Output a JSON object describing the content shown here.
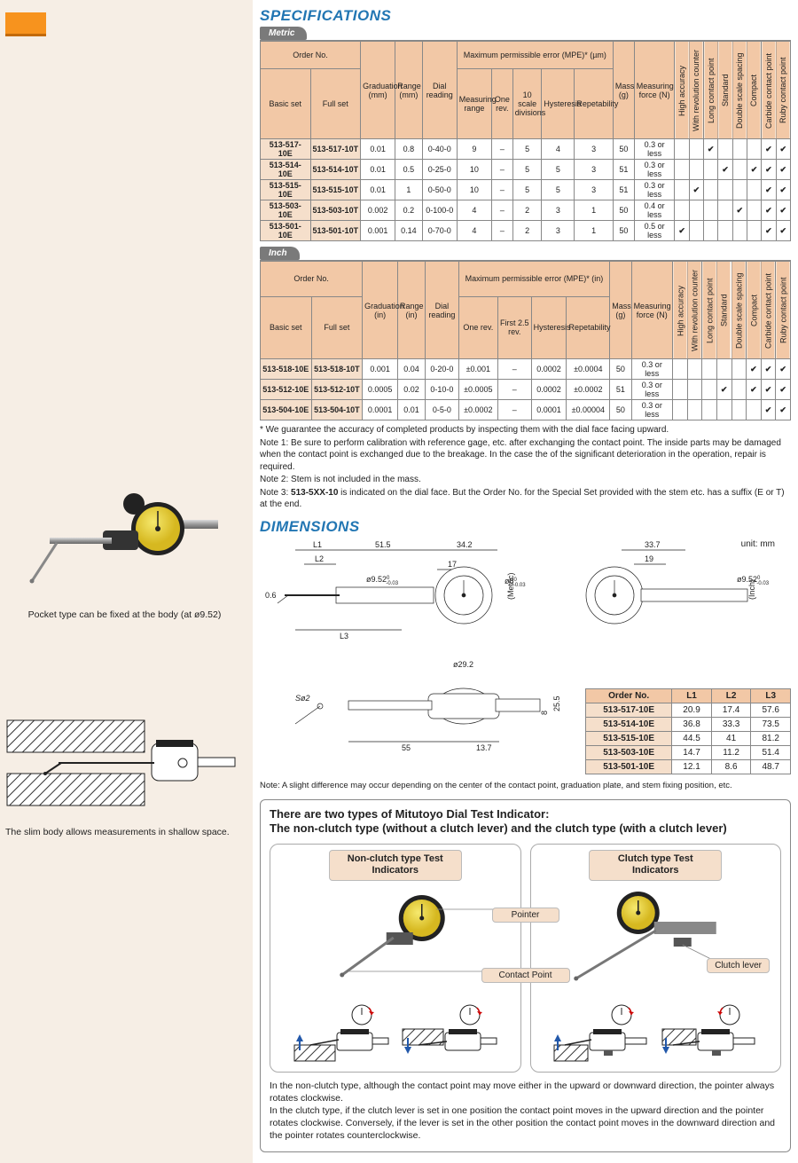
{
  "sidebar": {
    "caption1": "Pocket type can be fixed at the body (at ø9.52)",
    "caption2": "The slim body allows measurements in shallow space."
  },
  "headings": {
    "specs": "SPECIFICATIONS",
    "dimensions": "DIMENSIONS",
    "metric_tab": "Metric",
    "inch_tab": "Inch"
  },
  "metric_table": {
    "header_order": "Order No.",
    "header_basic": "Basic set",
    "header_full": "Full set",
    "header_grad": "Graduation (mm)",
    "header_range": "Range (mm)",
    "header_dial": "Dial reading",
    "header_mpe": "Maximum permissible error (MPE)* (µm)",
    "header_mrange": "Measuring range",
    "header_onerev": "One rev.",
    "header_10scale": "10 scale divisions",
    "header_hyst": "Hysteresis",
    "header_repeat": "Repetability",
    "header_mass": "Mass (g)",
    "header_force": "Measuring force (N)",
    "header_ha": "High accuracy",
    "header_rc": "With revolution counter",
    "header_lcp": "Long contact point",
    "header_std": "Standard",
    "header_dss": "Double scale spacing",
    "header_cmp": "Compact",
    "header_ccp": "Carbide contact point",
    "header_rcp": "Ruby contact point",
    "rows": [
      {
        "basic": "513-517-10E",
        "full": "513-517-10T",
        "grad": "0.01",
        "range": "0.8",
        "dial": "0-40-0",
        "mr": "9",
        "or": "–",
        "sd": "5",
        "hy": "4",
        "rp": "3",
        "mass": "50",
        "force": "0.3 or less",
        "cols": [
          "",
          "",
          "✔",
          "",
          "",
          "",
          "✔",
          "✔"
        ]
      },
      {
        "basic": "513-514-10E",
        "full": "513-514-10T",
        "grad": "0.01",
        "range": "0.5",
        "dial": "0-25-0",
        "mr": "10",
        "or": "–",
        "sd": "5",
        "hy": "5",
        "rp": "3",
        "mass": "51",
        "force": "0.3 or less",
        "cols": [
          "",
          "",
          "",
          "✔",
          "",
          "✔",
          "✔",
          "✔"
        ]
      },
      {
        "basic": "513-515-10E",
        "full": "513-515-10T",
        "grad": "0.01",
        "range": "1",
        "dial": "0-50-0",
        "mr": "10",
        "or": "–",
        "sd": "5",
        "hy": "5",
        "rp": "3",
        "mass": "51",
        "force": "0.3 or less",
        "cols": [
          "",
          "✔",
          "",
          "",
          "",
          "",
          "✔",
          "✔"
        ]
      },
      {
        "basic": "513-503-10E",
        "full": "513-503-10T",
        "grad": "0.002",
        "range": "0.2",
        "dial": "0-100-0",
        "mr": "4",
        "or": "–",
        "sd": "2",
        "hy": "3",
        "rp": "1",
        "mass": "50",
        "force": "0.4 or less",
        "cols": [
          "",
          "",
          "",
          "",
          "✔",
          "",
          "✔",
          "✔"
        ]
      },
      {
        "basic": "513-501-10E",
        "full": "513-501-10T",
        "grad": "0.001",
        "range": "0.14",
        "dial": "0-70-0",
        "mr": "4",
        "or": "–",
        "sd": "2",
        "hy": "3",
        "rp": "1",
        "mass": "50",
        "force": "0.5 or less",
        "cols": [
          "✔",
          "",
          "",
          "",
          "",
          "",
          "✔",
          "✔"
        ]
      }
    ]
  },
  "inch_table": {
    "header_mpe": "Maximum permissible error (MPE)* (in)",
    "header_grad": "Graduation (in)",
    "header_range": "Range (in)",
    "header_onerev": "One rev.",
    "header_first25": "First 2.5 rev.",
    "rows": [
      {
        "basic": "513-518-10E",
        "full": "513-518-10T",
        "grad": "0.001",
        "range": "0.04",
        "dial": "0-20-0",
        "or": "±0.001",
        "f25": "–",
        "hy": "0.0002",
        "rp": "±0.0004",
        "mass": "50",
        "force": "0.3 or less",
        "cols": [
          "",
          "",
          "",
          "",
          "",
          "✔",
          "✔",
          "✔"
        ]
      },
      {
        "basic": "513-512-10E",
        "full": "513-512-10T",
        "grad": "0.0005",
        "range": "0.02",
        "dial": "0-10-0",
        "or": "±0.0005",
        "f25": "–",
        "hy": "0.0002",
        "rp": "±0.0002",
        "mass": "51",
        "force": "0.3 or less",
        "cols": [
          "",
          "",
          "",
          "✔",
          "",
          "✔",
          "✔",
          "✔"
        ]
      },
      {
        "basic": "513-504-10E",
        "full": "513-504-10T",
        "grad": "0.0001",
        "range": "0.01",
        "dial": "0-5-0",
        "or": "±0.0002",
        "f25": "–",
        "hy": "0.0001",
        "rp": "±0.00004",
        "mass": "50",
        "force": "0.3 or less",
        "cols": [
          "",
          "",
          "",
          "",
          "",
          "",
          "✔",
          "✔"
        ]
      }
    ]
  },
  "notes": {
    "star": "* We guarantee the accuracy of completed products by inspecting them with the dial face facing upward.",
    "n1": "Note 1: Be sure to perform calibration with reference gage, etc. after exchanging the contact point. The inside parts may be damaged when the contact point is exchanged due to the breakage. In the case the of the significant deterioration in the operation, repair is required.",
    "n2": "Note 2: Stem is not included in the mass.",
    "n3a": "Note 3: ",
    "n3b": "513-5XX-10",
    "n3c": " is indicated on the dial face. But the Order No. for the Special Set provided with the stem etc. has a suffix (E or T) at the end."
  },
  "dim": {
    "unit": "unit: mm",
    "drawing_labels": {
      "L1": "L1",
      "L2": "L2",
      "L3": "L3",
      "d1": "51.5",
      "d2": "34.2",
      "d3": "17",
      "d4": "33.7",
      "d5": "19",
      "d6": "0.6",
      "d7": "ø9.52",
      "sup7": "-0.03",
      "sup7b": "0",
      "metric": "(Metric)",
      "inch": "(Inch)",
      "d8": "ø8",
      "sup8": "-0.03",
      "sup8b": "0",
      "d9": "ø29.2",
      "so2": "Sø2",
      "d10": "55",
      "d11": "13.7",
      "d12": "8",
      "d13": "25.5"
    },
    "header_order": "Order No.",
    "header_l1": "L1",
    "header_l2": "L2",
    "header_l3": "L3",
    "rows": [
      {
        "order": "513-517-10E",
        "l1": "20.9",
        "l2": "17.4",
        "l3": "57.6"
      },
      {
        "order": "513-514-10E",
        "l1": "36.8",
        "l2": "33.3",
        "l3": "73.5"
      },
      {
        "order": "513-515-10E",
        "l1": "44.5",
        "l2": "41",
        "l3": "81.2"
      },
      {
        "order": "513-503-10E",
        "l1": "14.7",
        "l2": "11.2",
        "l3": "51.4"
      },
      {
        "order": "513-501-10E",
        "l1": "12.1",
        "l2": "8.6",
        "l3": "48.7"
      }
    ],
    "note": "Note: A slight difference may occur depending on the center of the contact point, graduation plate, and stem fixing position, etc."
  },
  "types": {
    "heading_l1": "There are two types of Mitutoyo Dial Test Indicator:",
    "heading_l2": "The non-clutch type (without a clutch lever) and the clutch type (with a clutch lever)",
    "nonclutch_label": "Non-clutch type Test Indicators",
    "clutch_label": "Clutch type Test Indicators",
    "pointer": "Pointer",
    "contact_point": "Contact Point",
    "clutch_lever": "Clutch lever",
    "p1": "In the non-clutch type, although the contact point may move either in the upward or downward direction, the pointer always rotates clockwise.",
    "p2": "In the clutch type, if the clutch lever is set in one position the contact point moves in the upward direction and the pointer rotates clockwise. Conversely, if the lever is set in the other position the contact point moves in the downward direction and the pointer rotates counterclockwise."
  }
}
